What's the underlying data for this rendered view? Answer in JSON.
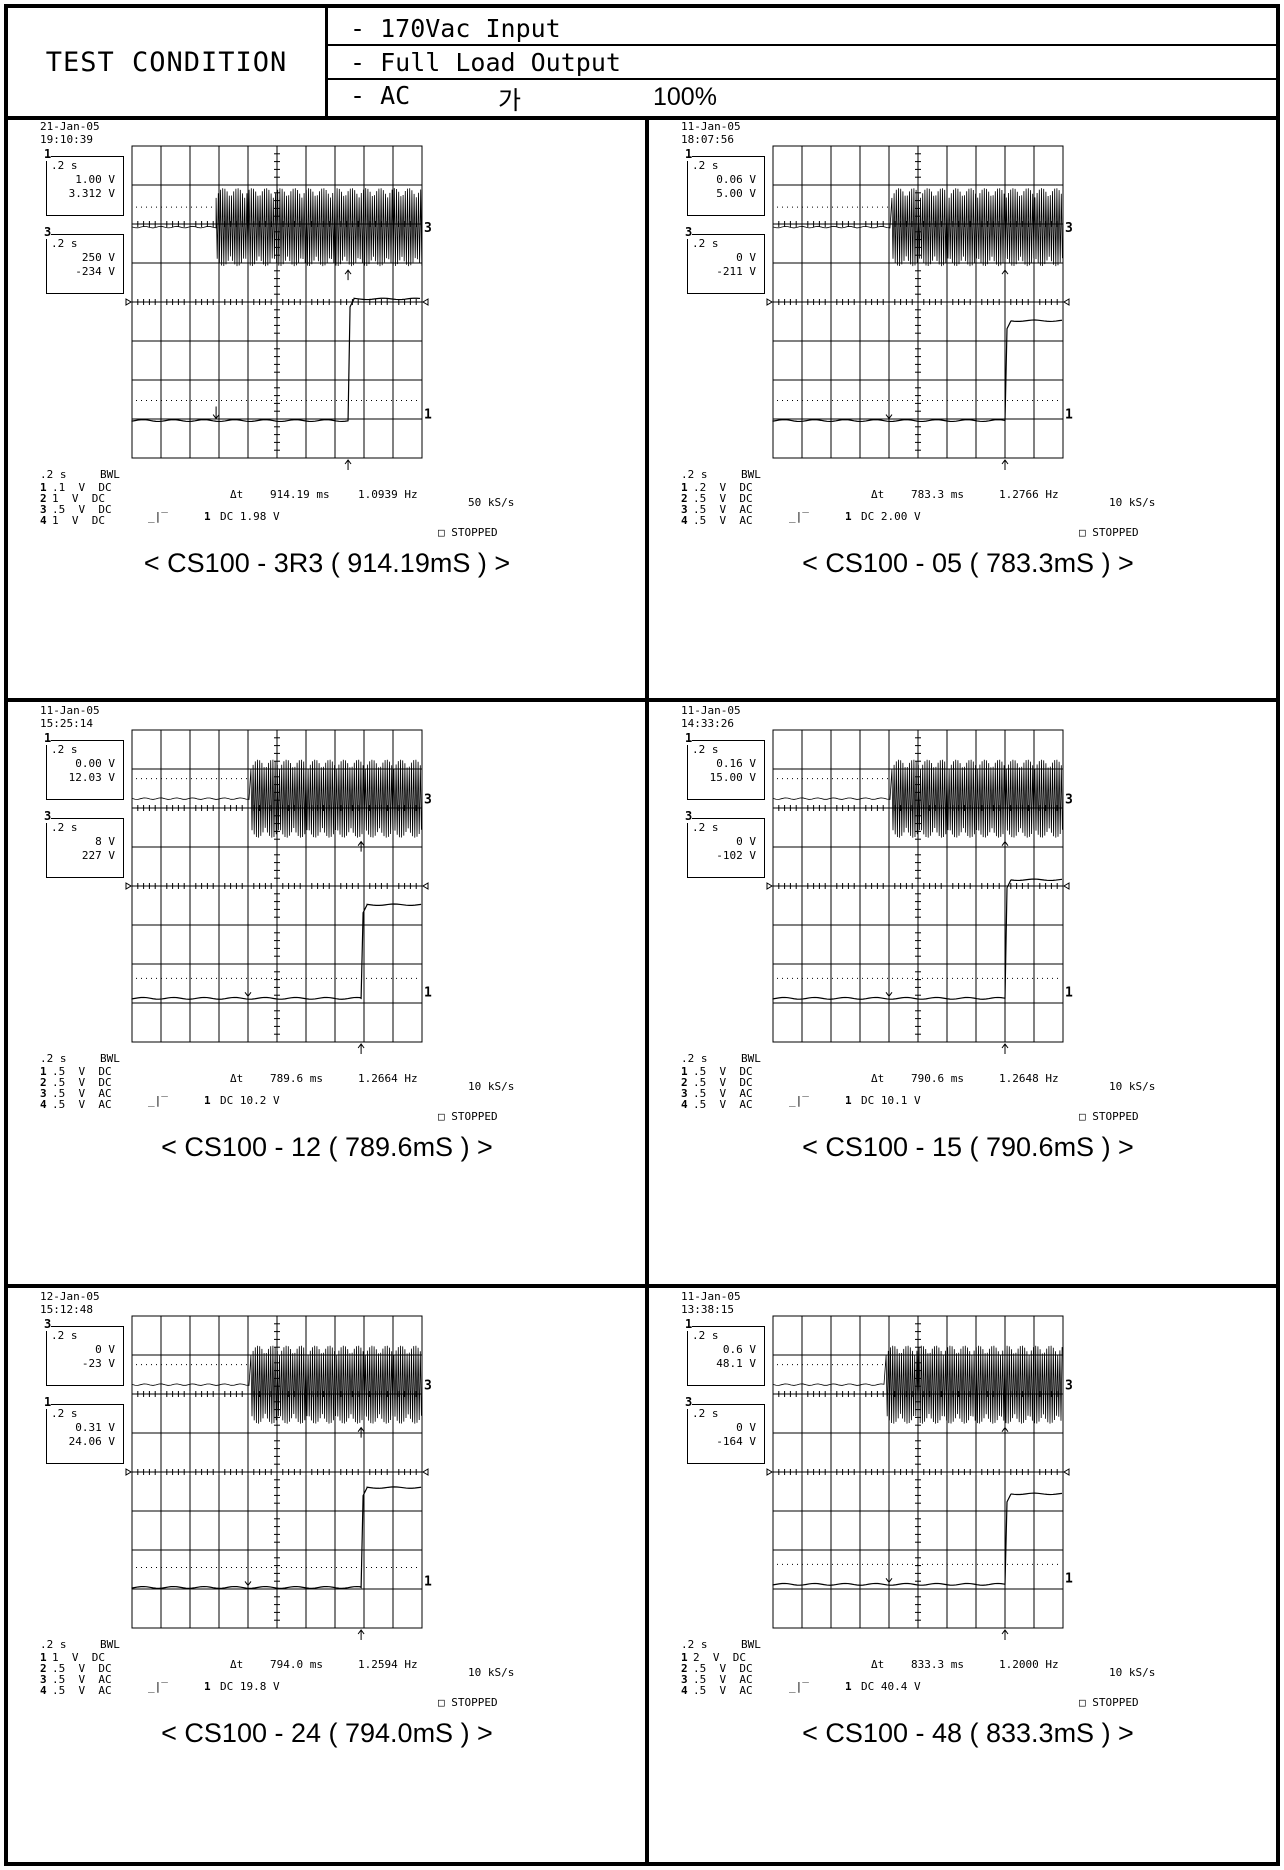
{
  "header": {
    "label": "TEST CONDITION",
    "lines": [
      "- 170Vac Input",
      "- Full Load Output",
      "- AC",
      "가",
      "100%"
    ]
  },
  "panels": [
    {
      "date": "21-Jan-05",
      "time": "19:10:39",
      "box_a": {
        "tag": "1",
        "line1": ".2 s",
        "line2": "1.00 V",
        "line3": "3.312 V"
      },
      "box_b": {
        "tag": "3",
        "line1": ".2 s",
        "line2": "250 V",
        "line3": "-234 V"
      },
      "footer": {
        "timebase": ".2 s",
        "bwl": "BWL",
        "ch1": ".1  V  DC",
        "ch2": "1  V  DC",
        "ch3": ".5  V  DC",
        "ch4": "1  V  DC",
        "delta_t": "Δt",
        "dt_value": "914.19 ms",
        "freq": "1.0939 Hz",
        "trigger": "DC 1.98 V",
        "rate": "50 kS/s",
        "state": "STOPPED"
      },
      "caption": "< CS100 - 3R3  ( 914.19mS ) >",
      "scope": {
        "ripple_start": 0.29,
        "step_x": 0.745,
        "ch3_level": 0.26,
        "ch1_low": 0.88,
        "ch1_high": 0.49
      }
    },
    {
      "date": "11-Jan-05",
      "time": "18:07:56",
      "box_a": {
        "tag": "1",
        "line1": ".2 s",
        "line2": "0.06 V",
        "line3": "5.00 V"
      },
      "box_b": {
        "tag": "3",
        "line1": ".2 s",
        "line2": "0 V",
        "line3": "-211 V"
      },
      "footer": {
        "timebase": ".2 s",
        "bwl": "BWL",
        "ch1": ".2  V  DC",
        "ch2": ".5  V  DC",
        "ch3": ".5  V  AC",
        "ch4": ".5  V  AC",
        "delta_t": "Δt",
        "dt_value": "783.3 ms",
        "freq": "1.2766 Hz",
        "trigger": "DC 2.00 V",
        "rate": "10 kS/s",
        "state": "STOPPED"
      },
      "caption": "< CS100 - 05  ( 783.3mS ) >",
      "scope": {
        "ripple_start": 0.41,
        "step_x": 0.8,
        "ch3_level": 0.26,
        "ch1_low": 0.88,
        "ch1_high": 0.56
      }
    },
    {
      "date": "11-Jan-05",
      "time": "15:25:14",
      "box_a": {
        "tag": "1",
        "line1": ".2 s",
        "line2": "0.00 V",
        "line3": "12.03 V"
      },
      "box_b": {
        "tag": "3",
        "line1": ".2 s",
        "line2": "8 V",
        "line3": "227 V"
      },
      "footer": {
        "timebase": ".2 s",
        "bwl": "BWL",
        "ch1": ".5  V  DC",
        "ch2": ".5  V  DC",
        "ch3": ".5  V  AC",
        "ch4": ".5  V  AC",
        "delta_t": "Δt",
        "dt_value": "789.6 ms",
        "freq": "1.2664 Hz",
        "trigger": "DC 10.2 V",
        "rate": "10 kS/s",
        "state": "STOPPED"
      },
      "caption": "< CS100 - 12  ( 789.6mS ) >",
      "scope": {
        "ripple_start": 0.41,
        "step_x": 0.79,
        "ch3_level": 0.22,
        "ch1_low": 0.86,
        "ch1_high": 0.56
      }
    },
    {
      "date": "11-Jan-05",
      "time": "14:33:26",
      "box_a": {
        "tag": "1",
        "line1": ".2 s",
        "line2": "0.16 V",
        "line3": "15.00 V"
      },
      "box_b": {
        "tag": "3",
        "line1": ".2 s",
        "line2": "0 V",
        "line3": "-102 V"
      },
      "footer": {
        "timebase": ".2 s",
        "bwl": "BWL",
        "ch1": ".5  V  DC",
        "ch2": ".5  V  DC",
        "ch3": ".5  V  AC",
        "ch4": ".5  V  AC",
        "delta_t": "Δt",
        "dt_value": "790.6 ms",
        "freq": "1.2648 Hz",
        "trigger": "DC 10.1 V",
        "rate": "10 kS/s",
        "state": "STOPPED"
      },
      "caption": "< CS100 - 15  ( 790.6mS ) >",
      "scope": {
        "ripple_start": 0.41,
        "step_x": 0.8,
        "ch3_level": 0.22,
        "ch1_low": 0.86,
        "ch1_high": 0.48
      }
    },
    {
      "date": "12-Jan-05",
      "time": "15:12:48",
      "box_a": {
        "tag": "3",
        "line1": ".2 s",
        "line2": "0 V",
        "line3": "-23 V"
      },
      "box_b": {
        "tag": "1",
        "line1": ".2 s",
        "line2": "0.31 V",
        "line3": "24.06 V"
      },
      "footer": {
        "timebase": ".2 s",
        "bwl": "BWL",
        "ch1": "1  V  DC",
        "ch2": ".5  V  DC",
        "ch3": ".5  V  AC",
        "ch4": ".5  V  AC",
        "delta_t": "Δt",
        "dt_value": "794.0 ms",
        "freq": "1.2594 Hz",
        "trigger": "DC 19.8 V",
        "rate": "10 kS/s",
        "state": "STOPPED"
      },
      "caption": "< CS100 - 24  ( 794.0mS ) >",
      "scope": {
        "ripple_start": 0.41,
        "step_x": 0.79,
        "ch3_level": 0.22,
        "ch1_low": 0.87,
        "ch1_high": 0.55
      }
    },
    {
      "date": "11-Jan-05",
      "time": "13:38:15",
      "box_a": {
        "tag": "1",
        "line1": ".2 s",
        "line2": "0.6 V",
        "line3": "48.1 V"
      },
      "box_b": {
        "tag": "3",
        "line1": ".2 s",
        "line2": "0 V",
        "line3": "-164 V"
      },
      "footer": {
        "timebase": ".2 s",
        "bwl": "BWL",
        "ch1": "2  V  DC",
        "ch2": ".5  V  DC",
        "ch3": ".5  V  AC",
        "ch4": ".5  V  AC",
        "delta_t": "Δt",
        "dt_value": "833.3 ms",
        "freq": "1.2000 Hz",
        "trigger": "DC 40.4 V",
        "rate": "10 kS/s",
        "state": "STOPPED"
      },
      "caption": "< CS100 - 48  ( 833.3mS ) >",
      "scope": {
        "ripple_start": 0.39,
        "step_x": 0.8,
        "ch3_level": 0.22,
        "ch1_low": 0.86,
        "ch1_high": 0.57
      }
    }
  ]
}
